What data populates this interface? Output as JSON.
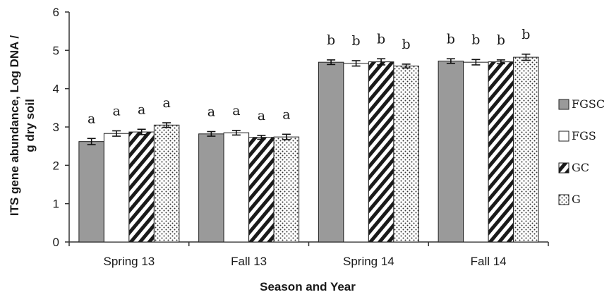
{
  "chart_data": {
    "type": "bar",
    "xlabel": "Season and Year",
    "ylabel": "ITS gene abundance, Log DNA / g dry soil",
    "ylabel_lines": [
      "ITS gene abundance, Log DNA /",
      "g dry soil"
    ],
    "ylim": [
      0,
      6
    ],
    "yticks": [
      0,
      1,
      2,
      3,
      4,
      5,
      6
    ],
    "grid": false,
    "legend_position": "right",
    "categories": [
      "Spring 13",
      "Fall 13",
      "Spring 14",
      "Fall 14"
    ],
    "series": [
      {
        "name": "FGSC",
        "pattern": "solid-gray",
        "color": "#9a9a9a",
        "values": [
          2.62,
          2.82,
          4.69,
          4.72
        ],
        "errors": [
          0.08,
          0.06,
          0.06,
          0.06
        ],
        "labels": [
          "a",
          "a",
          "b",
          "b"
        ]
      },
      {
        "name": "FGS",
        "pattern": "white",
        "color": "#ffffff",
        "values": [
          2.83,
          2.85,
          4.66,
          4.69
        ],
        "errors": [
          0.07,
          0.06,
          0.07,
          0.07
        ],
        "labels": [
          "a",
          "a",
          "b",
          "b"
        ]
      },
      {
        "name": "GC",
        "pattern": "diagonal-stripes",
        "color": "#1a1a1a",
        "values": [
          2.87,
          2.73,
          4.7,
          4.7
        ],
        "errors": [
          0.07,
          0.05,
          0.08,
          0.05
        ],
        "labels": [
          "a",
          "a",
          "b",
          "b"
        ]
      },
      {
        "name": "G",
        "pattern": "dots",
        "color": "#555555",
        "values": [
          3.05,
          2.74,
          4.59,
          4.82
        ],
        "errors": [
          0.06,
          0.07,
          0.05,
          0.08
        ],
        "labels": [
          "a",
          "a",
          "b",
          "b"
        ]
      }
    ]
  }
}
